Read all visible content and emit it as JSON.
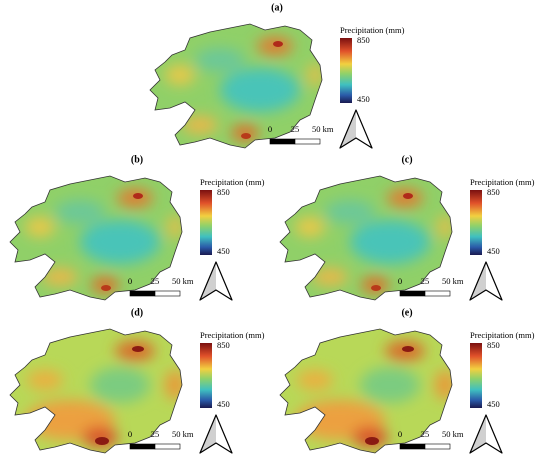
{
  "panels": [
    {
      "label": "(a)",
      "legend": {
        "title": "Precipitation (mm)",
        "max": "850",
        "min": "450"
      },
      "scale": [
        "0",
        "25",
        "50 km"
      ]
    },
    {
      "label": "(b)",
      "legend": {
        "title": "Precipitation (mm)",
        "max": "850",
        "min": "450"
      },
      "scale": [
        "0",
        "25",
        "50 km"
      ]
    },
    {
      "label": "(c)",
      "legend": {
        "title": "Precipitation (mm)",
        "max": "850",
        "min": "450"
      },
      "scale": [
        "0",
        "25",
        "50 km"
      ]
    },
    {
      "label": "(d)",
      "legend": {
        "title": "Precipitation (mm)",
        "max": "850",
        "min": "450"
      },
      "scale": [
        "0",
        "25",
        "50 km"
      ]
    },
    {
      "label": "(e)",
      "legend": {
        "title": "Precipitation (mm)",
        "max": "850",
        "min": "450"
      },
      "scale": [
        "0",
        "25",
        "50 km"
      ]
    }
  ]
}
